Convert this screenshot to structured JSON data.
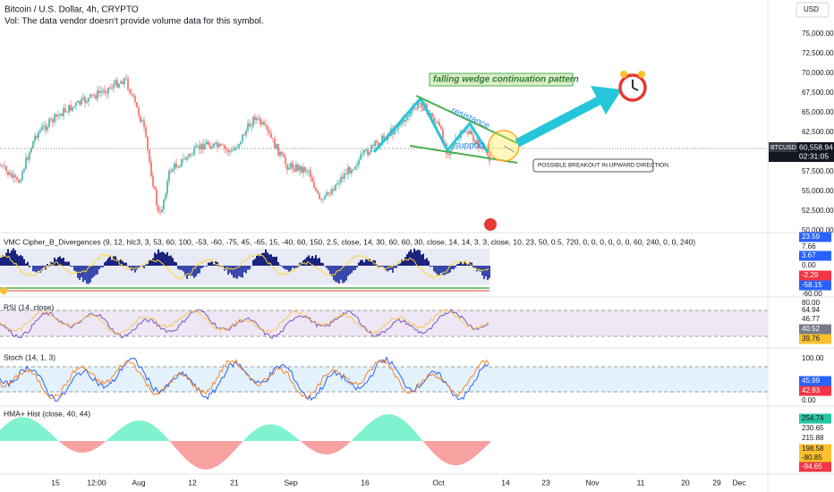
{
  "header": {
    "title": "Bitcoin / U.S. Dollar, 4h, CRYPTO",
    "volume_note": "Vol: The data vendor doesn't provide volume data for this symbol."
  },
  "currency": "USD",
  "price_axis": [
    "75,000.00",
    "72,500.00",
    "70,000.00",
    "67,500.00",
    "65,000.00",
    "62,500.00",
    "57,500.00",
    "55,000.00",
    "52,500.00",
    "50,000.00"
  ],
  "current_price": {
    "symbol": "BTCUSD",
    "price": "60,558.94",
    "countdown": "02:31:05"
  },
  "annotations": {
    "pattern": "falling wedge continuation pattern",
    "resistance": "resistance",
    "support": "support",
    "breakout": "POSSIBLE BREAKOUT IN UPWARD DIRECTION."
  },
  "panes": [
    {
      "title": "VMC Cipher_B_Divergences (9, 12, hlc3, 3, 53, 60, 100, -53, -60, -75, 45, -65, 15, -40, 60, 150, 2.5, close, 14, 30, 60, 60, 30, close, 14, 14, 3, 3, close, 10, 23, 50, 0.5, 720, 0, 0, 0, 0, 0, 0, 60, 240, 0, 0, 240)",
      "axis": [
        {
          "label": "23.59",
          "style": "blue"
        },
        {
          "label": "7.66",
          "style": "plain"
        },
        {
          "label": "3.67",
          "style": "blue"
        },
        {
          "label": "0.00",
          "style": "plain"
        },
        {
          "label": "-2.29",
          "style": "red"
        },
        {
          "label": "-58.15",
          "style": "blue"
        },
        {
          "label": "-60.00",
          "style": "plain"
        }
      ]
    },
    {
      "title": "RSI (14, close)",
      "axis": [
        {
          "label": "80.00",
          "style": "plain"
        },
        {
          "label": "64.94",
          "style": "plain"
        },
        {
          "label": "46.77",
          "style": "plain"
        },
        {
          "label": "40.52",
          "style": "gray"
        },
        {
          "label": "39.76",
          "style": "yellow"
        }
      ]
    },
    {
      "title": "Stoch (14, 1, 3)",
      "axis": [
        {
          "label": "100.00",
          "style": "plain"
        },
        {
          "label": "45.99",
          "style": "blue"
        },
        {
          "label": "42.93",
          "style": "red"
        },
        {
          "label": "0.00",
          "style": "plain"
        }
      ]
    },
    {
      "title": "HMA+ Hist (close, 40, 44)",
      "axis": [
        {
          "label": "254.74",
          "style": "green"
        },
        {
          "label": "230.65",
          "style": "plain"
        },
        {
          "label": "215.88",
          "style": "plain"
        },
        {
          "label": "198.58",
          "style": "yellow"
        },
        {
          "label": "-80.85",
          "style": "yellow"
        },
        {
          "label": "-94.65",
          "style": "red"
        }
      ]
    }
  ],
  "time_axis": [
    "15",
    "12:00",
    "Aug",
    "12",
    "21",
    "Sep",
    "16",
    "Oct",
    "14",
    "23",
    "Nov",
    "11",
    "20",
    "29",
    "Dec"
  ]
}
